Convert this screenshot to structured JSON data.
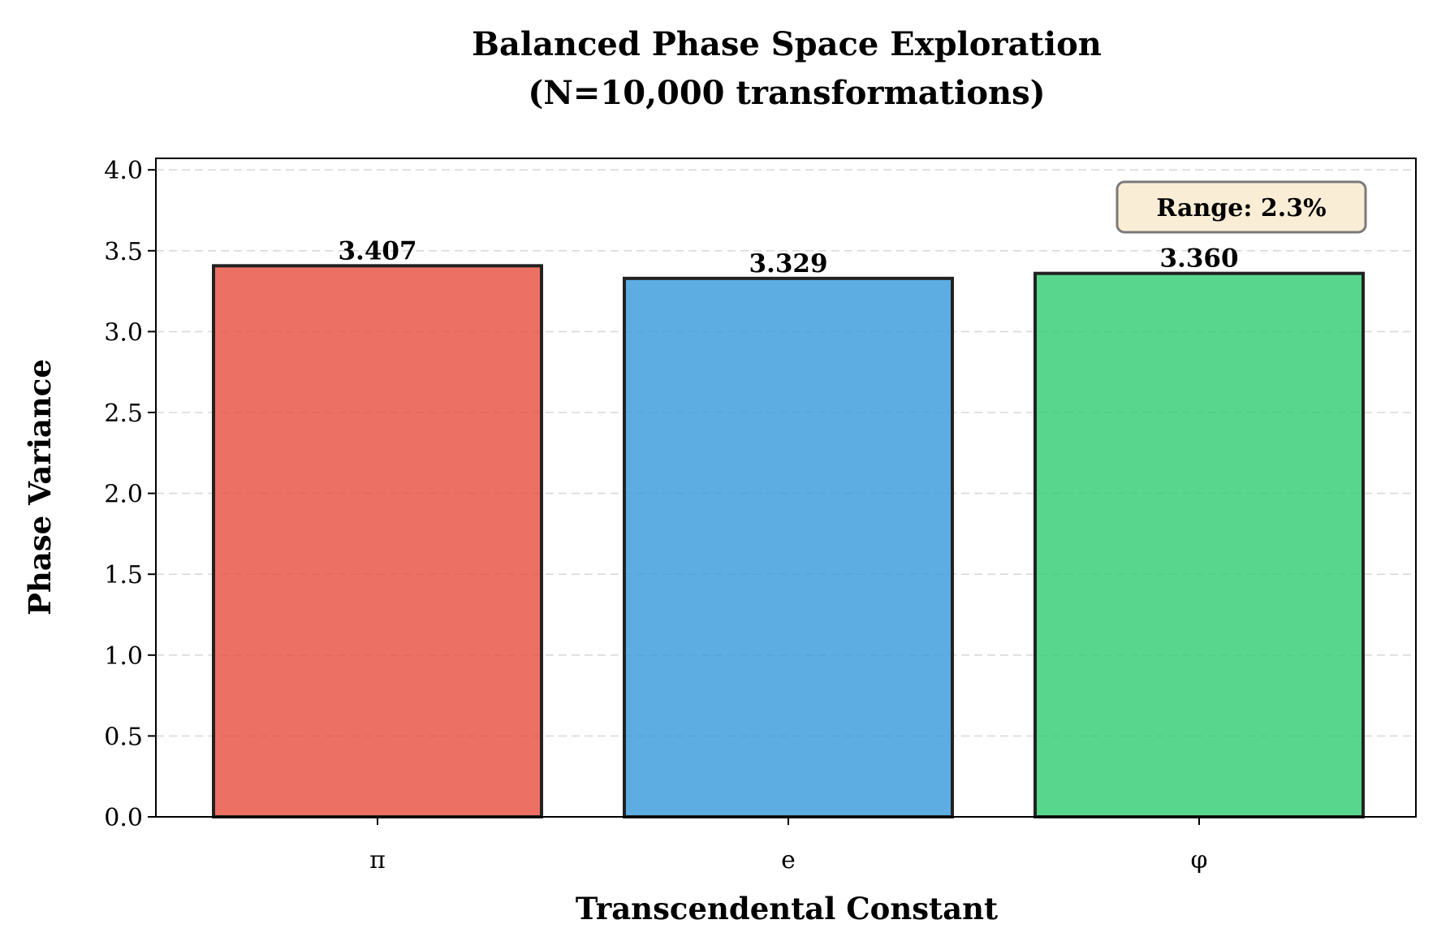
{
  "chart_data": {
    "type": "bar",
    "title_line1": "Balanced Phase Space Exploration",
    "title_line2": "(N=10,000 transformations)",
    "xlabel": "Transcendental Constant",
    "ylabel": "Phase Variance",
    "categories": [
      "π",
      "e",
      "φ"
    ],
    "values": [
      3.407,
      3.329,
      3.36
    ],
    "value_labels": [
      "3.407",
      "3.329",
      "3.360"
    ],
    "colors": [
      "#e74c3c",
      "#3498db",
      "#2ecc71"
    ],
    "ylim": [
      0,
      4.08
    ],
    "yticks": [
      0.0,
      0.5,
      1.0,
      1.5,
      2.0,
      2.5,
      3.0,
      3.5,
      4.0
    ],
    "ytick_labels": [
      "0.0",
      "0.5",
      "1.0",
      "1.5",
      "2.0",
      "2.5",
      "3.0",
      "3.5",
      "4.0"
    ],
    "grid": "y-dashed",
    "annotation": {
      "text": "Range: 2.3%",
      "placement": "top-right",
      "background": "#f5deb3"
    }
  }
}
